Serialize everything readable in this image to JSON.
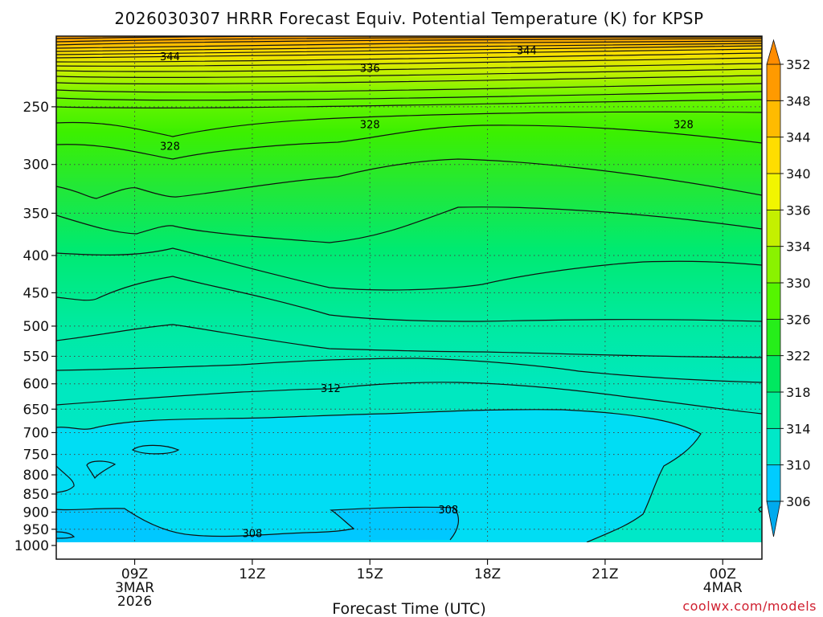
{
  "chart_data": {
    "type": "heatmap",
    "title": "2026030307 HRRR Forecast Equiv. Potential Temperature (K) for KPSP",
    "xlabel": "Forecast Time (UTC)",
    "ylabel": "",
    "x_ticks": [
      {
        "hour": 9,
        "lines": [
          "09Z",
          "3MAR",
          "2026"
        ]
      },
      {
        "hour": 12,
        "lines": [
          "12Z"
        ]
      },
      {
        "hour": 15,
        "lines": [
          "15Z"
        ]
      },
      {
        "hour": 18,
        "lines": [
          "18Z"
        ]
      },
      {
        "hour": 21,
        "lines": [
          "21Z"
        ]
      },
      {
        "hour": 24,
        "lines": [
          "00Z",
          "4MAR"
        ]
      }
    ],
    "xlim_hours": [
      7,
      25
    ],
    "y_ticks_hpa": [
      250,
      300,
      350,
      400,
      450,
      500,
      550,
      600,
      650,
      700,
      750,
      800,
      850,
      900,
      950,
      1000
    ],
    "ylim_hpa": [
      200,
      1015
    ],
    "y_scale": "log-pressure",
    "grid": "dotted",
    "ground_level_hpa": 990,
    "colorbar": {
      "levels": [
        306,
        310,
        314,
        318,
        322,
        326,
        330,
        334,
        336,
        340,
        344,
        348,
        352
      ],
      "colors": [
        "#00ccff",
        "#00e8c8",
        "#00ed96",
        "#00e860",
        "#26ee1a",
        "#55f500",
        "#8af200",
        "#c4f000",
        "#f2f500",
        "#ffdd00",
        "#ffbb00",
        "#ff9a00"
      ],
      "under_color": "#00aaee",
      "over_color": "#ff8c00",
      "extend": "both"
    },
    "contour_labels": [
      {
        "text": "344",
        "hour": 9.9,
        "hpa": 213
      },
      {
        "text": "336",
        "hour": 15.0,
        "hpa": 221
      },
      {
        "text": "344",
        "hour": 19.0,
        "hpa": 209
      },
      {
        "text": "328",
        "hour": 9.9,
        "hpa": 283
      },
      {
        "text": "328",
        "hour": 15.0,
        "hpa": 264
      },
      {
        "text": "328",
        "hour": 23.0,
        "hpa": 264
      },
      {
        "text": "312",
        "hour": 14.0,
        "hpa": 608
      },
      {
        "text": "308",
        "hour": 17.0,
        "hpa": 892
      },
      {
        "text": "308",
        "hour": 12.0,
        "hpa": 961
      }
    ]
  },
  "watermark": "coolwx.com/models"
}
